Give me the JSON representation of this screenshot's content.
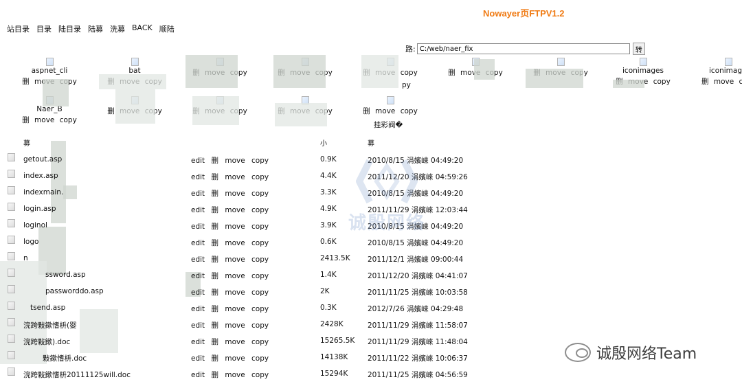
{
  "app_title": "Nowayer页FTPV1.2",
  "nav": [
    "站目录",
    "目录",
    "陆目录",
    "陆募",
    "洗募",
    "BACK",
    "顺陆"
  ],
  "path": {
    "label": "路:",
    "value": "C:/web/naer_fix",
    "go_label": "转"
  },
  "folders": [
    {
      "name": "aspnet_cli",
      "actions": [
        "删",
        "move",
        "copy"
      ]
    },
    {
      "name": "bat",
      "actions": [
        "删",
        "move",
        "copy"
      ]
    },
    {
      "name": "",
      "actions": [
        "删",
        "move",
        "copy"
      ]
    },
    {
      "name": "",
      "actions": [
        "删",
        "move",
        "copy"
      ]
    },
    {
      "name": "",
      "actions": [
        "删",
        "move",
        "copy"
      ]
    },
    {
      "name": "",
      "actions": [
        "删",
        "move",
        "copy"
      ]
    },
    {
      "name": "",
      "actions": [
        "删",
        "move",
        "copy"
      ]
    },
    {
      "name": "iconimages",
      "actions": [
        "删",
        "move",
        "copy"
      ]
    },
    {
      "name": "iconimage",
      "actions": [
        "删",
        "move",
        "copy"
      ]
    },
    {
      "name": "Naer_B",
      "actions": [
        "删",
        "move",
        "copy"
      ]
    },
    {
      "name": "",
      "actions": [
        "删",
        "move",
        "copy"
      ]
    },
    {
      "name": "",
      "actions": [
        "删",
        "move",
        "copy"
      ]
    },
    {
      "name": "",
      "actions": [
        "删",
        "move",
        "copy"
      ]
    },
    {
      "name": "",
      "actions": [
        "删",
        "move",
        "copy"
      ]
    }
  ],
  "folder_tail_labels": {
    "f5": "py",
    "f14": "挂彩阀�"
  },
  "columns": {
    "name": "募",
    "size": "小",
    "date": "募"
  },
  "file_actions": [
    "edit",
    "删",
    "move",
    "copy"
  ],
  "files": [
    {
      "name": "getout.asp",
      "size": "0.9K",
      "date": "2010/8/15 涓嬪崍 04:49:20"
    },
    {
      "name": "index.asp",
      "size": "4.4K",
      "date": "2011/12/20 涓嬪崍 04:59:26"
    },
    {
      "name": "indexmain.",
      "size": "3.3K",
      "date": "2010/8/15 涓嬪崍 04:49:20"
    },
    {
      "name": "login.asp",
      "size": "4.9K",
      "date": "2011/11/29 涓嬪崍 12:03:44"
    },
    {
      "name": "loginol",
      "size": "3.9K",
      "date": "2010/8/15 涓嬪崍 04:49:20"
    },
    {
      "name": "logo",
      "size": "0.6K",
      "date": "2010/8/15 涓嬪崍 04:49:20"
    },
    {
      "name": "n",
      "size": "2413.5K",
      "date": "2011/12/1 涓嬪崍 09:00:44"
    },
    {
      "name": "ssword.asp",
      "size": "1.4K",
      "date": "2011/12/20 涓嬪崍 04:41:07"
    },
    {
      "name": "passworddo.asp",
      "size": "2K",
      "date": "2011/11/25 涓嬪崍 10:03:58"
    },
    {
      "name": "tsend.asp",
      "size": "0.3K",
      "date": "2012/7/26 涓嬪崍 04:29:48"
    },
    {
      "name": "浣跨敤鏉愭枡(婴",
      "size": "2428K",
      "date": "2011/11/29 涓嬪崍 11:58:07"
    },
    {
      "name": "浣跨敤鏉).doc",
      "size": "15265.5K",
      "date": "2011/11/29 涓嬪崍 11:48:04"
    },
    {
      "name": "敤鏉愭枡.doc",
      "size": "14138K",
      "date": "2011/11/22 涓嬪崍 10:06:37"
    },
    {
      "name": "浣跨敤鏉愭枡20111125will.doc",
      "size": "15294K",
      "date": "2011/11/25 涓嬪崍 04:56:59"
    }
  ],
  "watermark_center": {
    "text": "诚殷网络"
  },
  "watermark_corner": {
    "text": "诚殷网络Team",
    "icon": "wechat-icon"
  }
}
